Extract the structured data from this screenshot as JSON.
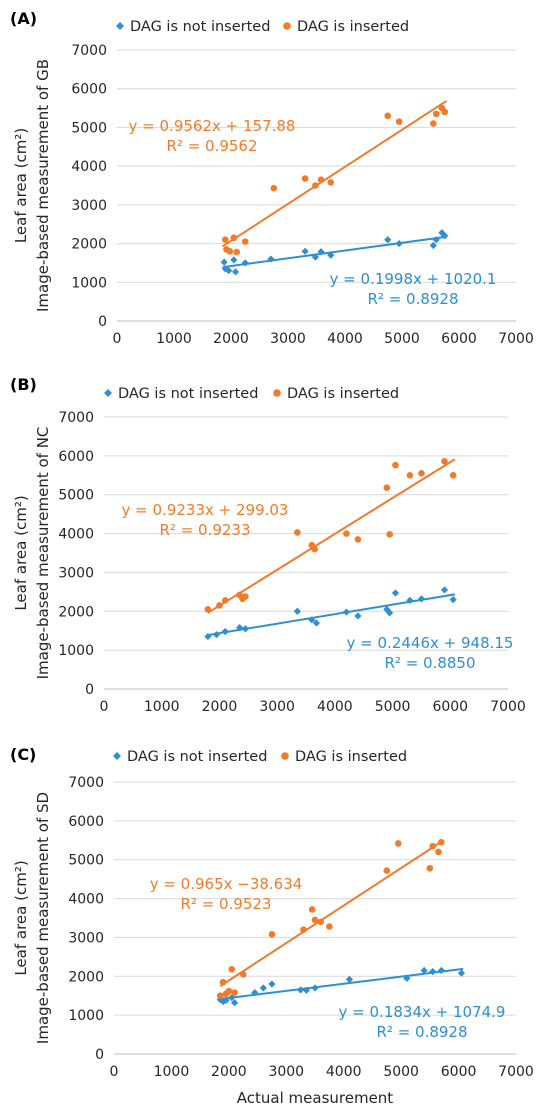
{
  "xlabel": "Actual measurement",
  "chart_data": [
    {
      "type": "scatter",
      "panel_label": "(A)",
      "xlabel": "",
      "ylabel_line1": "Leaf area (cm²)",
      "ylabel_line2": "Image-based measurement of GB",
      "xlim": [
        0,
        7000
      ],
      "ylim": [
        0,
        7000
      ],
      "xticks": [
        0,
        1000,
        2000,
        3000,
        4000,
        5000,
        6000,
        7000
      ],
      "yticks": [
        0,
        1000,
        2000,
        3000,
        4000,
        5000,
        6000,
        7000
      ],
      "legend_position": "top",
      "series": [
        {
          "name": "DAG is not inserted",
          "marker": "diamond",
          "color": "#2E8FD2",
          "points": [
            [
              1880,
              1520
            ],
            [
              1900,
              1350
            ],
            [
              1960,
              1300
            ],
            [
              2050,
              1580
            ],
            [
              2080,
              1270
            ],
            [
              2250,
              1500
            ],
            [
              2700,
              1600
            ],
            [
              3300,
              1800
            ],
            [
              3480,
              1650
            ],
            [
              3580,
              1790
            ],
            [
              3750,
              1700
            ],
            [
              4750,
              2100
            ],
            [
              4950,
              2000
            ],
            [
              5550,
              1950
            ],
            [
              5600,
              2100
            ],
            [
              5700,
              2280
            ],
            [
              5750,
              2200
            ]
          ],
          "trendline": {
            "slope": 0.1998,
            "intercept": 1020.1,
            "x_range": [
              1850,
              5780
            ]
          },
          "equation": "y = 0.1998x + 1020.1",
          "r2": "R² = 0.8928"
        },
        {
          "name": "DAG is inserted",
          "marker": "circle",
          "color": "#F07C2B",
          "points": [
            [
              1900,
              2100
            ],
            [
              1920,
              1850
            ],
            [
              1980,
              1800
            ],
            [
              2050,
              2150
            ],
            [
              2100,
              1780
            ],
            [
              2250,
              2050
            ],
            [
              2750,
              3430
            ],
            [
              3300,
              3680
            ],
            [
              3480,
              3500
            ],
            [
              3580,
              3650
            ],
            [
              3750,
              3580
            ],
            [
              4750,
              5300
            ],
            [
              4950,
              5150
            ],
            [
              5550,
              5100
            ],
            [
              5600,
              5350
            ],
            [
              5700,
              5500
            ],
            [
              5750,
              5400
            ]
          ],
          "trendline": {
            "slope": 0.9562,
            "intercept": 157.88,
            "x_range": [
              1850,
              5780
            ]
          },
          "equation": "y = 0.9562x + 157.88",
          "r2": "R² = 0.9562"
        }
      ]
    },
    {
      "type": "scatter",
      "panel_label": "(B)",
      "xlabel": "",
      "ylabel_line1": "Leaf area (cm²)",
      "ylabel_line2": "Image-based measurement of NC",
      "xlim": [
        0,
        7000
      ],
      "ylim": [
        0,
        7000
      ],
      "xticks": [
        0,
        1000,
        2000,
        3000,
        4000,
        5000,
        6000,
        7000
      ],
      "yticks": [
        0,
        1000,
        2000,
        3000,
        4000,
        5000,
        6000,
        7000
      ],
      "legend_position": "top",
      "series": [
        {
          "name": "DAG is not inserted",
          "marker": "diamond",
          "color": "#2E8FD2",
          "points": [
            [
              1800,
              1350
            ],
            [
              1950,
              1400
            ],
            [
              2100,
              1480
            ],
            [
              2350,
              1580
            ],
            [
              2450,
              1550
            ],
            [
              3350,
              2000
            ],
            [
              3600,
              1780
            ],
            [
              3680,
              1700
            ],
            [
              4200,
              1980
            ],
            [
              4400,
              1880
            ],
            [
              4900,
              2050
            ],
            [
              4950,
              1960
            ],
            [
              5050,
              2470
            ],
            [
              5300,
              2280
            ],
            [
              5500,
              2320
            ],
            [
              5900,
              2550
            ],
            [
              6050,
              2300
            ]
          ],
          "trendline": {
            "slope": 0.2446,
            "intercept": 948.15,
            "x_range": [
              1800,
              6080
            ]
          },
          "equation": "y = 0.2446x + 948.15",
          "r2": "R² = 0.8850"
        },
        {
          "name": "DAG is inserted",
          "marker": "circle",
          "color": "#F07C2B",
          "points": [
            [
              1800,
              2050
            ],
            [
              2000,
              2150
            ],
            [
              2100,
              2280
            ],
            [
              2350,
              2420
            ],
            [
              2400,
              2320
            ],
            [
              2450,
              2380
            ],
            [
              3350,
              4030
            ],
            [
              3600,
              3700
            ],
            [
              3650,
              3600
            ],
            [
              4200,
              4000
            ],
            [
              4400,
              3850
            ],
            [
              4900,
              5180
            ],
            [
              4950,
              3980
            ],
            [
              5050,
              5760
            ],
            [
              5300,
              5500
            ],
            [
              5500,
              5550
            ],
            [
              5900,
              5860
            ],
            [
              6050,
              5500
            ]
          ],
          "trendline": {
            "slope": 0.9233,
            "intercept": 299.03,
            "x_range": [
              1800,
              6080
            ]
          },
          "equation": "y = 0.9233x + 299.03",
          "r2": "R² = 0.9233"
        }
      ]
    },
    {
      "type": "scatter",
      "panel_label": "(C)",
      "xlabel": "Actual measurement",
      "ylabel_line1": "Leaf area (cm²)",
      "ylabel_line2": "Image-based measurement of SD",
      "xlim": [
        0,
        7000
      ],
      "ylim": [
        0,
        7000
      ],
      "xticks": [
        0,
        1000,
        2000,
        3000,
        4000,
        5000,
        6000,
        7000
      ],
      "yticks": [
        0,
        1000,
        2000,
        3000,
        4000,
        5000,
        6000,
        7000
      ],
      "legend_position": "top",
      "series": [
        {
          "name": "DAG is not inserted",
          "marker": "diamond",
          "color": "#2E8FD2",
          "points": [
            [
              1850,
              1400
            ],
            [
              1900,
              1350
            ],
            [
              1950,
              1380
            ],
            [
              2000,
              1600
            ],
            [
              2050,
              1450
            ],
            [
              2100,
              1320
            ],
            [
              2450,
              1580
            ],
            [
              2600,
              1700
            ],
            [
              2750,
              1800
            ],
            [
              3250,
              1650
            ],
            [
              3350,
              1640
            ],
            [
              3500,
              1700
            ],
            [
              4100,
              1920
            ],
            [
              5100,
              1950
            ],
            [
              5400,
              2150
            ],
            [
              5550,
              2120
            ],
            [
              5700,
              2150
            ],
            [
              6050,
              2080
            ]
          ],
          "trendline": {
            "slope": 0.1834,
            "intercept": 1074.9,
            "x_range": [
              1850,
              6080
            ]
          },
          "equation": "y = 0.1834x + 1074.9",
          "r2": "R² = 0.8928"
        },
        {
          "name": "DAG is inserted",
          "marker": "circle",
          "color": "#F07C2B",
          "points": [
            [
              1850,
              1500
            ],
            [
              1900,
              1850
            ],
            [
              1950,
              1550
            ],
            [
              2000,
              1620
            ],
            [
              2050,
              2180
            ],
            [
              2100,
              1580
            ],
            [
              2250,
              2050
            ],
            [
              2750,
              3080
            ],
            [
              3300,
              3200
            ],
            [
              3450,
              3720
            ],
            [
              3500,
              3450
            ],
            [
              3600,
              3400
            ],
            [
              3750,
              3280
            ],
            [
              4750,
              4720
            ],
            [
              4950,
              5420
            ],
            [
              5500,
              4780
            ],
            [
              5550,
              5350
            ],
            [
              5650,
              5200
            ],
            [
              5700,
              5450
            ]
          ],
          "trendline": {
            "slope": 0.965,
            "intercept": -38.634,
            "x_range": [
              1850,
              5720
            ]
          },
          "equation": "y = 0.965x −38.634",
          "r2": "R² = 0.9523"
        }
      ]
    }
  ]
}
